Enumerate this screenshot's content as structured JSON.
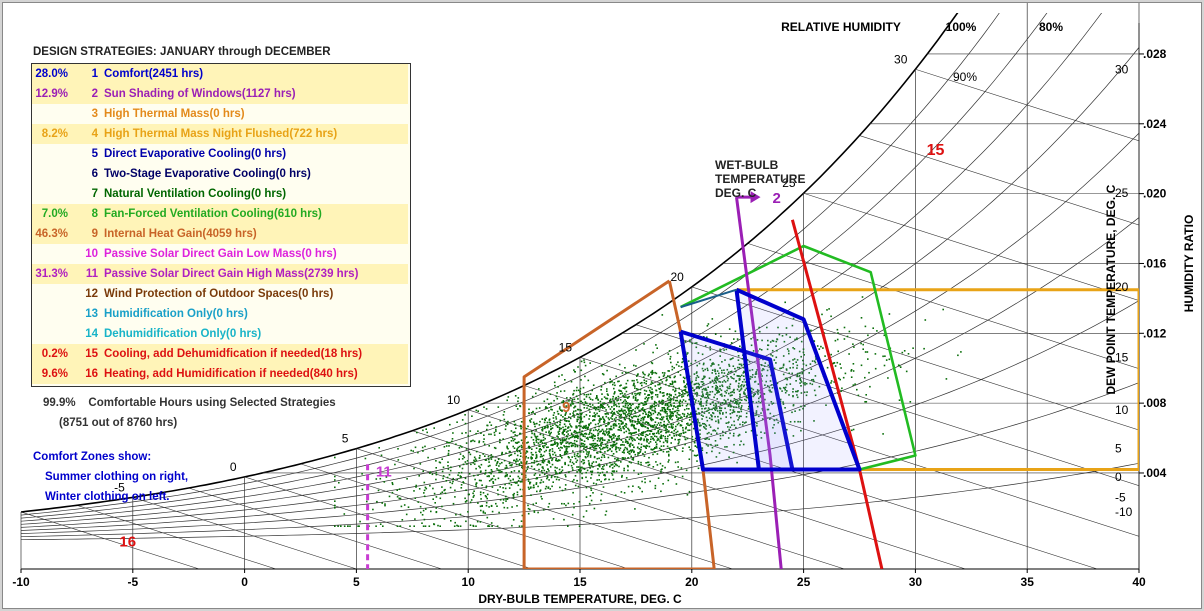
{
  "header": {
    "title": "DESIGN STRATEGIES:  JANUARY through DECEMBER",
    "relative_humidity_label": "RELATIVE HUMIDITY",
    "rh_labels": [
      "100%",
      "80%",
      "90%"
    ]
  },
  "strategies": [
    {
      "pct": "28.0%",
      "num": "1",
      "label": "Comfort",
      "hours": "(2451 hrs)",
      "color": "#0000cc",
      "highlight": true
    },
    {
      "pct": "12.9%",
      "num": "2",
      "label": "Sun Shading of Windows",
      "hours": "(1127 hrs)",
      "color": "#9b1fb5",
      "highlight": true
    },
    {
      "pct": "",
      "num": "3",
      "label": "High Thermal Mass",
      "hours": "(0 hrs)",
      "color": "#e38a1b",
      "highlight": false
    },
    {
      "pct": "8.2%",
      "num": "4",
      "label": "High Thermal Mass Night Flushed",
      "hours": "(722 hrs)",
      "color": "#e8a317",
      "highlight": true
    },
    {
      "pct": "",
      "num": "5",
      "label": "Direct Evaporative Cooling",
      "hours": "(0 hrs)",
      "color": "#0000aa",
      "highlight": false
    },
    {
      "pct": "",
      "num": "6",
      "label": "Two-Stage Evaporative Cooling",
      "hours": "(0 hrs)",
      "color": "#000066",
      "highlight": false
    },
    {
      "pct": "",
      "num": "7",
      "label": "Natural Ventilation Cooling",
      "hours": "(0 hrs)",
      "color": "#006600",
      "highlight": false
    },
    {
      "pct": "7.0%",
      "num": "8",
      "label": "Fan-Forced Ventilation Cooling",
      "hours": "(610 hrs)",
      "color": "#22aa22",
      "highlight": true
    },
    {
      "pct": "46.3%",
      "num": "9",
      "label": "Internal Heat Gain",
      "hours": "(4059 hrs)",
      "color": "#c86428",
      "highlight": true
    },
    {
      "pct": "",
      "num": "10",
      "label": "Passive Solar Direct Gain Low Mass",
      "hours": "(0 hrs)",
      "color": "#dd22dd",
      "highlight": false
    },
    {
      "pct": "31.3%",
      "num": "11",
      "label": "Passive Solar Direct Gain High Mass",
      "hours": "(2739 hrs)",
      "color": "#b01fc0",
      "highlight": true
    },
    {
      "pct": "",
      "num": "12",
      "label": "Wind Protection of Outdoor Spaces",
      "hours": "(0 hrs)",
      "color": "#7a3b0a",
      "highlight": false
    },
    {
      "pct": "",
      "num": "13",
      "label": "Humidification Only",
      "hours": "(0 hrs)",
      "color": "#19a0c8",
      "highlight": false
    },
    {
      "pct": "",
      "num": "14",
      "label": "Dehumidification Only",
      "hours": "(0 hrs)",
      "color": "#19b4c8",
      "highlight": false
    },
    {
      "pct": "0.2%",
      "num": "15",
      "label": "Cooling, add Dehumidfication if needed",
      "hours": "(18 hrs)",
      "color": "#dd1111",
      "highlight": true
    },
    {
      "pct": "9.6%",
      "num": "16",
      "label": "Heating, add Humidification if needed",
      "hours": "(840 hrs)",
      "color": "#dd1111",
      "highlight": true
    }
  ],
  "summary": {
    "pct": "99.9%",
    "text": "Comfortable Hours using Selected Strategies",
    "detail": "(8751 out of 8760 hrs)"
  },
  "comfort_note": {
    "line1": "Comfort Zones show:",
    "line2": "Summer clothing on right,",
    "line3": "Winter clothing on left."
  },
  "chart_data": {
    "type": "scatter",
    "xlabel": "DRY-BULB TEMPERATURE, DEG. C",
    "ylabel_right_outer": "HUMIDITY RATIO",
    "ylabel_right_inner": "DEW POINT TEMPERATURE, DEG. C",
    "wet_bulb_label": [
      "WET-BULB",
      "TEMPERATURE",
      "DEG. C"
    ],
    "x_ticks": [
      "-10",
      "-5",
      "0",
      "5",
      "10",
      "15",
      "20",
      "25",
      "30",
      "35",
      "40"
    ],
    "xlim": [
      -10,
      40
    ],
    "humidity_ratio_ticks": [
      ".028",
      ".024",
      ".020",
      ".016",
      ".012",
      ".008",
      ".004"
    ],
    "humidity_ratio_values": [
      0.028,
      0.024,
      0.02,
      0.016,
      0.012,
      0.008,
      0.004
    ],
    "dew_point_ticks": [
      "30",
      "25",
      "20",
      "15",
      "10",
      "5",
      "0",
      "-5",
      "-10"
    ],
    "wet_bulb_ticks": [
      "-5",
      "0",
      "5",
      "10",
      "15",
      "20",
      "25",
      "30"
    ],
    "zone_numbers": {
      "z2": "2",
      "z9": "9",
      "z11": "11",
      "z15": "15",
      "z16": "16"
    },
    "colors": {
      "saturation": "#000000",
      "points": "#0a6e0a",
      "comfort": "#0000cc",
      "sun_shading": "#9b1fb5",
      "thermal_mass": "#e8a317",
      "ventilation": "#22bb22",
      "internal_gain": "#c86428",
      "passive_solar": "#c83cd2",
      "cooling": "#dd1111"
    },
    "comfort_winter": [
      [
        19.5,
        0.0121
      ],
      [
        23.5,
        0.0105
      ],
      [
        24.5,
        0.0042
      ],
      [
        20.5,
        0.0042
      ]
    ],
    "comfort_summer": [
      [
        22.0,
        0.0145
      ],
      [
        25.0,
        0.0128
      ],
      [
        27.5,
        0.0042
      ],
      [
        23.0,
        0.0042
      ]
    ],
    "sun_shading_line": [
      [
        22.0,
        0.0198
      ],
      [
        23.5,
        0.005
      ],
      [
        24.0,
        -0.0015
      ]
    ],
    "thermal_mass_zone": [
      [
        22.0,
        0.0145
      ],
      [
        40.0,
        0.0145
      ],
      [
        40.0,
        0.0042
      ],
      [
        27.5,
        0.0042
      ]
    ],
    "ventilation_zone": [
      [
        19.5,
        0.0135
      ],
      [
        25.0,
        0.017
      ],
      [
        28.0,
        0.0155
      ],
      [
        30.0,
        0.005
      ],
      [
        27.5,
        0.0042
      ]
    ],
    "internal_gain_zone": [
      [
        19.0,
        0.015
      ],
      [
        19.5,
        0.0121
      ],
      [
        20.5,
        0.0042
      ],
      [
        21.0,
        -0.0015
      ],
      [
        12.5,
        -0.0015
      ],
      [
        12.5,
        0.0095
      ],
      [
        19.0,
        0.015
      ]
    ],
    "passive_solar_line": [
      [
        5.5,
        0.0045
      ],
      [
        5.5,
        -0.0015
      ]
    ],
    "cooling_line": [
      [
        24.5,
        0.0185
      ],
      [
        27.5,
        0.0042
      ],
      [
        28.5,
        -0.0015
      ]
    ]
  }
}
